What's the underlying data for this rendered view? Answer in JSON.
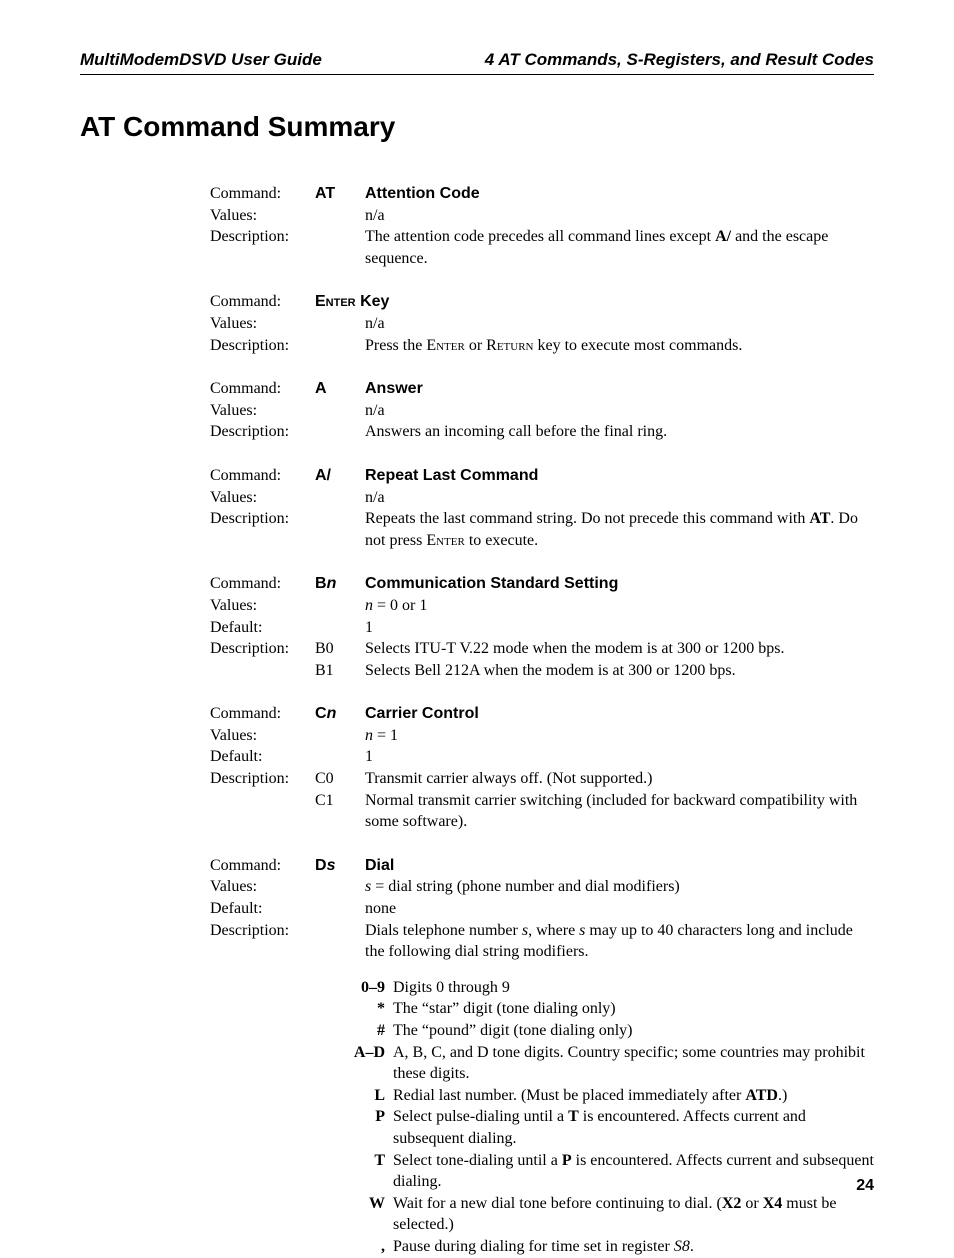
{
  "header": {
    "left": "MultiModemDSVD User Guide",
    "right": "4  AT Commands, S-Registers, and Result Codes"
  },
  "section_title": "AT Command Summary",
  "labels": {
    "command": "Command:",
    "values": "Values:",
    "default": "Default:",
    "description": "Description:"
  },
  "entries": {
    "at": {
      "cmd": "AT",
      "title": "Attention Code",
      "values": "n/a",
      "desc_pre": "The attention code precedes all command lines except ",
      "desc_bold": "A/",
      "desc_post": " and the escape sequence."
    },
    "enter": {
      "cmd_sc": "Enter",
      "cmd_rest": " Key",
      "values": "n/a",
      "desc_pre": "Press the ",
      "desc_sc1": "Enter",
      "desc_mid": " or ",
      "desc_sc2": "Return",
      "desc_post": " key to execute most commands."
    },
    "a": {
      "cmd": "A",
      "title": "Answer",
      "values": "n/a",
      "desc": "Answers an incoming call before the final ring."
    },
    "aslash": {
      "cmd": "A/",
      "title": "Repeat Last Command",
      "values": "n/a",
      "desc_pre": "Repeats the last command string. Do not precede this command with ",
      "desc_bold": "AT",
      "desc_mid": ". Do not press ",
      "desc_sc": "Enter",
      "desc_post": " to execute."
    },
    "bn": {
      "cmd_b": "B",
      "cmd_n": "n",
      "title": "Communication Standard Setting",
      "values_pre": "n",
      "values_post": " = 0 or 1",
      "default": "1",
      "b0_lbl": "B0",
      "b0_txt": "Selects ITU-T V.22 mode when the modem is at 300 or 1200 bps.",
      "b1_lbl": "B1",
      "b1_txt": "Selects Bell 212A when the modem is at 300 or 1200 bps."
    },
    "cn": {
      "cmd_c": "C",
      "cmd_n": "n",
      "title": "Carrier Control",
      "values_pre": "n",
      "values_post": " = 1",
      "default": "1",
      "c0_lbl": "C0",
      "c0_txt": "Transmit carrier always off. (Not supported.)",
      "c1_lbl": "C1",
      "c1_txt": "Normal transmit carrier switching (included for backward compatibility with some software)."
    },
    "ds": {
      "cmd_d": "D",
      "cmd_s": "s",
      "title": "Dial",
      "values_pre": "s",
      "values_post": " = dial string (phone number and dial modifiers)",
      "default": "none",
      "desc_pre": "Dials telephone number ",
      "desc_i1": "s",
      "desc_mid": ", where ",
      "desc_i2": "s",
      "desc_post": " may up to 40 characters long and include the following dial string modifiers.",
      "mods": {
        "m0_key": "0–9",
        "m0_val": "Digits 0 through 9",
        "m1_key": "*",
        "m1_val": "The “star” digit (tone dialing only)",
        "m2_key": "#",
        "m2_val": "The “pound” digit (tone dialing only)",
        "m3_key": "A–D",
        "m3_val": "A, B, C, and D tone digits. Country specific; some countries may prohibit these digits.",
        "m4_key": "L",
        "m4_pre": "Redial last number. (Must be placed immediately after ",
        "m4_bold": "ATD",
        "m4_post": ".)",
        "m5_key": "P",
        "m5_pre": "Select pulse-dialing until a ",
        "m5_bold": "T",
        "m5_post": " is encountered. Affects current and subsequent dialing.",
        "m6_key": "T",
        "m6_pre": "Select tone-dialing until a ",
        "m6_bold": "P",
        "m6_post": " is encountered. Affects current and subsequent dialing.",
        "m7_key": "W",
        "m7_pre": "Wait for a new dial tone before continuing to dial. (",
        "m7_b1": "X2",
        "m7_mid": " or ",
        "m7_b2": "X4",
        "m7_post": " must be selected.)",
        "m8_key": ",",
        "m8_pre": "Pause during dialing for time set in register ",
        "m8_i": "S8",
        "m8_post": "."
      }
    }
  },
  "page_number": "24"
}
